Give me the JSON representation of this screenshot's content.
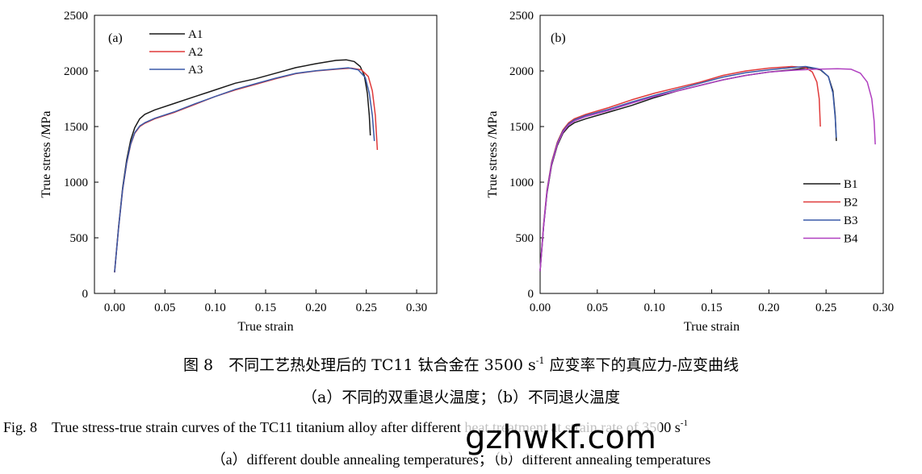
{
  "chart_data": [
    {
      "type": "line",
      "panel_label": "(a)",
      "xlabel": "True strain",
      "ylabel": "True stress /MPa",
      "xlim": [
        -0.02,
        0.32
      ],
      "ylim": [
        0,
        2500
      ],
      "xticks": [
        "0.00",
        "0.05",
        "0.10",
        "0.15",
        "0.20",
        "0.25",
        "0.30"
      ],
      "yticks": [
        "0",
        "500",
        "1000",
        "1500",
        "2000",
        "2500"
      ],
      "grid": false,
      "legend": "top-left",
      "series": [
        {
          "name": "A1",
          "color": "#1a1a1a",
          "points": [
            [
              0,
              190
            ],
            [
              0.004,
              600
            ],
            [
              0.008,
              950
            ],
            [
              0.012,
              1200
            ],
            [
              0.016,
              1380
            ],
            [
              0.02,
              1490
            ],
            [
              0.025,
              1570
            ],
            [
              0.03,
              1610
            ],
            [
              0.04,
              1650
            ],
            [
              0.06,
              1710
            ],
            [
              0.08,
              1770
            ],
            [
              0.1,
              1830
            ],
            [
              0.12,
              1890
            ],
            [
              0.14,
              1930
            ],
            [
              0.16,
              1980
            ],
            [
              0.18,
              2030
            ],
            [
              0.2,
              2065
            ],
            [
              0.22,
              2095
            ],
            [
              0.23,
              2100
            ],
            [
              0.238,
              2085
            ],
            [
              0.244,
              2040
            ],
            [
              0.248,
              1960
            ],
            [
              0.251,
              1800
            ],
            [
              0.253,
              1600
            ],
            [
              0.254,
              1420
            ]
          ]
        },
        {
          "name": "A2",
          "color": "#e03a3a",
          "points": [
            [
              0,
              190
            ],
            [
              0.004,
              590
            ],
            [
              0.008,
              930
            ],
            [
              0.012,
              1170
            ],
            [
              0.016,
              1340
            ],
            [
              0.02,
              1440
            ],
            [
              0.025,
              1500
            ],
            [
              0.03,
              1530
            ],
            [
              0.04,
              1570
            ],
            [
              0.06,
              1630
            ],
            [
              0.08,
              1700
            ],
            [
              0.1,
              1770
            ],
            [
              0.12,
              1830
            ],
            [
              0.14,
              1880
            ],
            [
              0.16,
              1930
            ],
            [
              0.18,
              1975
            ],
            [
              0.2,
              2000
            ],
            [
              0.22,
              2015
            ],
            [
              0.235,
              2025
            ],
            [
              0.245,
              2010
            ],
            [
              0.252,
              1950
            ],
            [
              0.256,
              1820
            ],
            [
              0.259,
              1600
            ],
            [
              0.261,
              1290
            ]
          ]
        },
        {
          "name": "A3",
          "color": "#3a5aa8",
          "points": [
            [
              0,
              190
            ],
            [
              0.004,
              590
            ],
            [
              0.008,
              935
            ],
            [
              0.012,
              1175
            ],
            [
              0.016,
              1345
            ],
            [
              0.02,
              1445
            ],
            [
              0.025,
              1505
            ],
            [
              0.03,
              1535
            ],
            [
              0.04,
              1575
            ],
            [
              0.06,
              1635
            ],
            [
              0.08,
              1705
            ],
            [
              0.1,
              1770
            ],
            [
              0.12,
              1835
            ],
            [
              0.14,
              1885
            ],
            [
              0.16,
              1935
            ],
            [
              0.18,
              1978
            ],
            [
              0.2,
              2002
            ],
            [
              0.22,
              2018
            ],
            [
              0.232,
              2028
            ],
            [
              0.242,
              2010
            ],
            [
              0.249,
              1940
            ],
            [
              0.253,
              1800
            ],
            [
              0.256,
              1600
            ],
            [
              0.258,
              1370
            ]
          ]
        }
      ]
    },
    {
      "type": "line",
      "panel_label": "(b)",
      "xlabel": "True strain",
      "ylabel": "True stress /MPa",
      "xlim": [
        0,
        0.3
      ],
      "ylim": [
        0,
        2500
      ],
      "xticks": [
        "0.00",
        "0.05",
        "0.10",
        "0.15",
        "0.20",
        "0.25",
        "0.30"
      ],
      "yticks": [
        "0",
        "500",
        "1000",
        "1500",
        "2000",
        "2500"
      ],
      "grid": false,
      "legend": "bottom-right",
      "series": [
        {
          "name": "B1",
          "color": "#1a1a1a",
          "points": [
            [
              0,
              200
            ],
            [
              0.003,
              600
            ],
            [
              0.006,
              900
            ],
            [
              0.01,
              1150
            ],
            [
              0.015,
              1330
            ],
            [
              0.02,
              1440
            ],
            [
              0.025,
              1500
            ],
            [
              0.03,
              1535
            ],
            [
              0.04,
              1570
            ],
            [
              0.06,
              1630
            ],
            [
              0.08,
              1690
            ],
            [
              0.1,
              1760
            ],
            [
              0.12,
              1820
            ],
            [
              0.14,
              1870
            ],
            [
              0.16,
              1920
            ],
            [
              0.18,
              1960
            ],
            [
              0.2,
              1990
            ],
            [
              0.22,
              2010
            ],
            [
              0.235,
              2030
            ],
            [
              0.245,
              2010
            ],
            [
              0.252,
              1950
            ],
            [
              0.256,
              1820
            ],
            [
              0.258,
              1600
            ],
            [
              0.259,
              1370
            ]
          ]
        },
        {
          "name": "B2",
          "color": "#e03a3a",
          "points": [
            [
              0,
              210
            ],
            [
              0.003,
              620
            ],
            [
              0.006,
              930
            ],
            [
              0.01,
              1180
            ],
            [
              0.015,
              1360
            ],
            [
              0.02,
              1470
            ],
            [
              0.025,
              1535
            ],
            [
              0.03,
              1570
            ],
            [
              0.04,
              1610
            ],
            [
              0.06,
              1670
            ],
            [
              0.08,
              1740
            ],
            [
              0.1,
              1800
            ],
            [
              0.12,
              1850
            ],
            [
              0.14,
              1900
            ],
            [
              0.16,
              1960
            ],
            [
              0.18,
              2000
            ],
            [
              0.2,
              2025
            ],
            [
              0.22,
              2040
            ],
            [
              0.232,
              2030
            ],
            [
              0.238,
              1990
            ],
            [
              0.242,
              1900
            ],
            [
              0.244,
              1750
            ],
            [
              0.245,
              1500
            ]
          ]
        },
        {
          "name": "B3",
          "color": "#3a5aa8",
          "points": [
            [
              0,
              210
            ],
            [
              0.003,
              610
            ],
            [
              0.006,
              920
            ],
            [
              0.01,
              1170
            ],
            [
              0.015,
              1350
            ],
            [
              0.02,
              1460
            ],
            [
              0.025,
              1525
            ],
            [
              0.03,
              1560
            ],
            [
              0.04,
              1600
            ],
            [
              0.06,
              1655
            ],
            [
              0.08,
              1720
            ],
            [
              0.1,
              1780
            ],
            [
              0.12,
              1835
            ],
            [
              0.14,
              1890
            ],
            [
              0.16,
              1945
            ],
            [
              0.18,
              1985
            ],
            [
              0.2,
              2010
            ],
            [
              0.22,
              2030
            ],
            [
              0.232,
              2040
            ],
            [
              0.245,
              2015
            ],
            [
              0.252,
              1950
            ],
            [
              0.256,
              1800
            ],
            [
              0.258,
              1580
            ],
            [
              0.259,
              1400
            ]
          ]
        },
        {
          "name": "B4",
          "color": "#b040c0",
          "points": [
            [
              0,
              200
            ],
            [
              0.003,
              600
            ],
            [
              0.006,
              910
            ],
            [
              0.01,
              1160
            ],
            [
              0.015,
              1340
            ],
            [
              0.02,
              1450
            ],
            [
              0.025,
              1515
            ],
            [
              0.03,
              1550
            ],
            [
              0.04,
              1590
            ],
            [
              0.06,
              1645
            ],
            [
              0.08,
              1710
            ],
            [
              0.1,
              1770
            ],
            [
              0.12,
              1820
            ],
            [
              0.14,
              1870
            ],
            [
              0.16,
              1920
            ],
            [
              0.18,
              1960
            ],
            [
              0.2,
              1990
            ],
            [
              0.22,
              2005
            ],
            [
              0.24,
              2015
            ],
            [
              0.26,
              2020
            ],
            [
              0.272,
              2015
            ],
            [
              0.28,
              1980
            ],
            [
              0.286,
              1900
            ],
            [
              0.29,
              1750
            ],
            [
              0.292,
              1550
            ],
            [
              0.293,
              1340
            ]
          ]
        }
      ]
    }
  ],
  "captions": {
    "cn_title_pre": "图 8　不同工艺热处理后的 TC11 钛合金在 3500 s",
    "cn_title_sup": "-1",
    "cn_title_post": " 应变率下的真应力-应变曲线",
    "cn_sub": "（a）不同的双重退火温度；（b）不同退火温度",
    "en_title_pre": "Fig. 8　True stress-true strain curves of the TC11 titanium alloy after different heat treatment at strain rate of 3500 s",
    "en_title_sup": "-1",
    "en_sub": "（a）different double annealing temperatures；（b）different annealing temperatures"
  },
  "watermark": "gzhwkf.com"
}
